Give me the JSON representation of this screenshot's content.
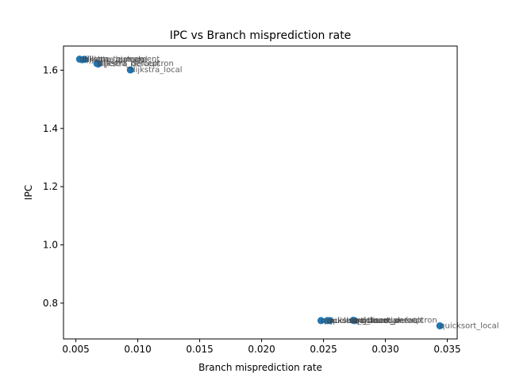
{
  "chart_data": {
    "type": "scatter",
    "title": "IPC vs Branch misprediction rate",
    "xlabel": "Branch misprediction rate",
    "ylabel": "IPC",
    "xlim": [
      0.004,
      0.0358
    ],
    "ylim": [
      0.677,
      1.683
    ],
    "x_ticks": [
      0.005,
      0.01,
      0.015,
      0.02,
      0.025,
      0.03,
      0.035
    ],
    "x_tick_labels": [
      "0.005",
      "0.010",
      "0.015",
      "0.020",
      "0.025",
      "0.030",
      "0.035"
    ],
    "y_ticks": [
      0.8,
      1.0,
      1.2,
      1.4,
      1.6
    ],
    "y_tick_labels": [
      "0.8",
      "1.0",
      "1.2",
      "1.4",
      "1.6"
    ],
    "grid": false,
    "marker_color": "#1f77b4",
    "points": [
      {
        "label": "dijkstra_tournament",
        "x": 0.0053,
        "y": 1.638
      },
      {
        "label": "dijkstra_gshare",
        "x": 0.0057,
        "y": 1.637
      },
      {
        "label": "dijkstra_bimodal",
        "x": 0.0055,
        "y": 1.636
      },
      {
        "label": "dijkstra_default",
        "x": 0.0068,
        "y": 1.621
      },
      {
        "label": "dijkstra_perceptron",
        "x": 0.0067,
        "y": 1.623
      },
      {
        "label": "dijkstra_local",
        "x": 0.0094,
        "y": 1.601
      },
      {
        "label": "quicksort_gshare",
        "x": 0.0248,
        "y": 0.74
      },
      {
        "label": "quicksort_bimodal",
        "x": 0.0253,
        "y": 0.74
      },
      {
        "label": "quicksort_tournament",
        "x": 0.0255,
        "y": 0.74
      },
      {
        "label": "quicksort_perceptron",
        "x": 0.0274,
        "y": 0.741
      },
      {
        "label": "quicksort_default",
        "x": 0.0275,
        "y": 0.74
      },
      {
        "label": "quicksort_local",
        "x": 0.0344,
        "y": 0.722
      }
    ]
  }
}
